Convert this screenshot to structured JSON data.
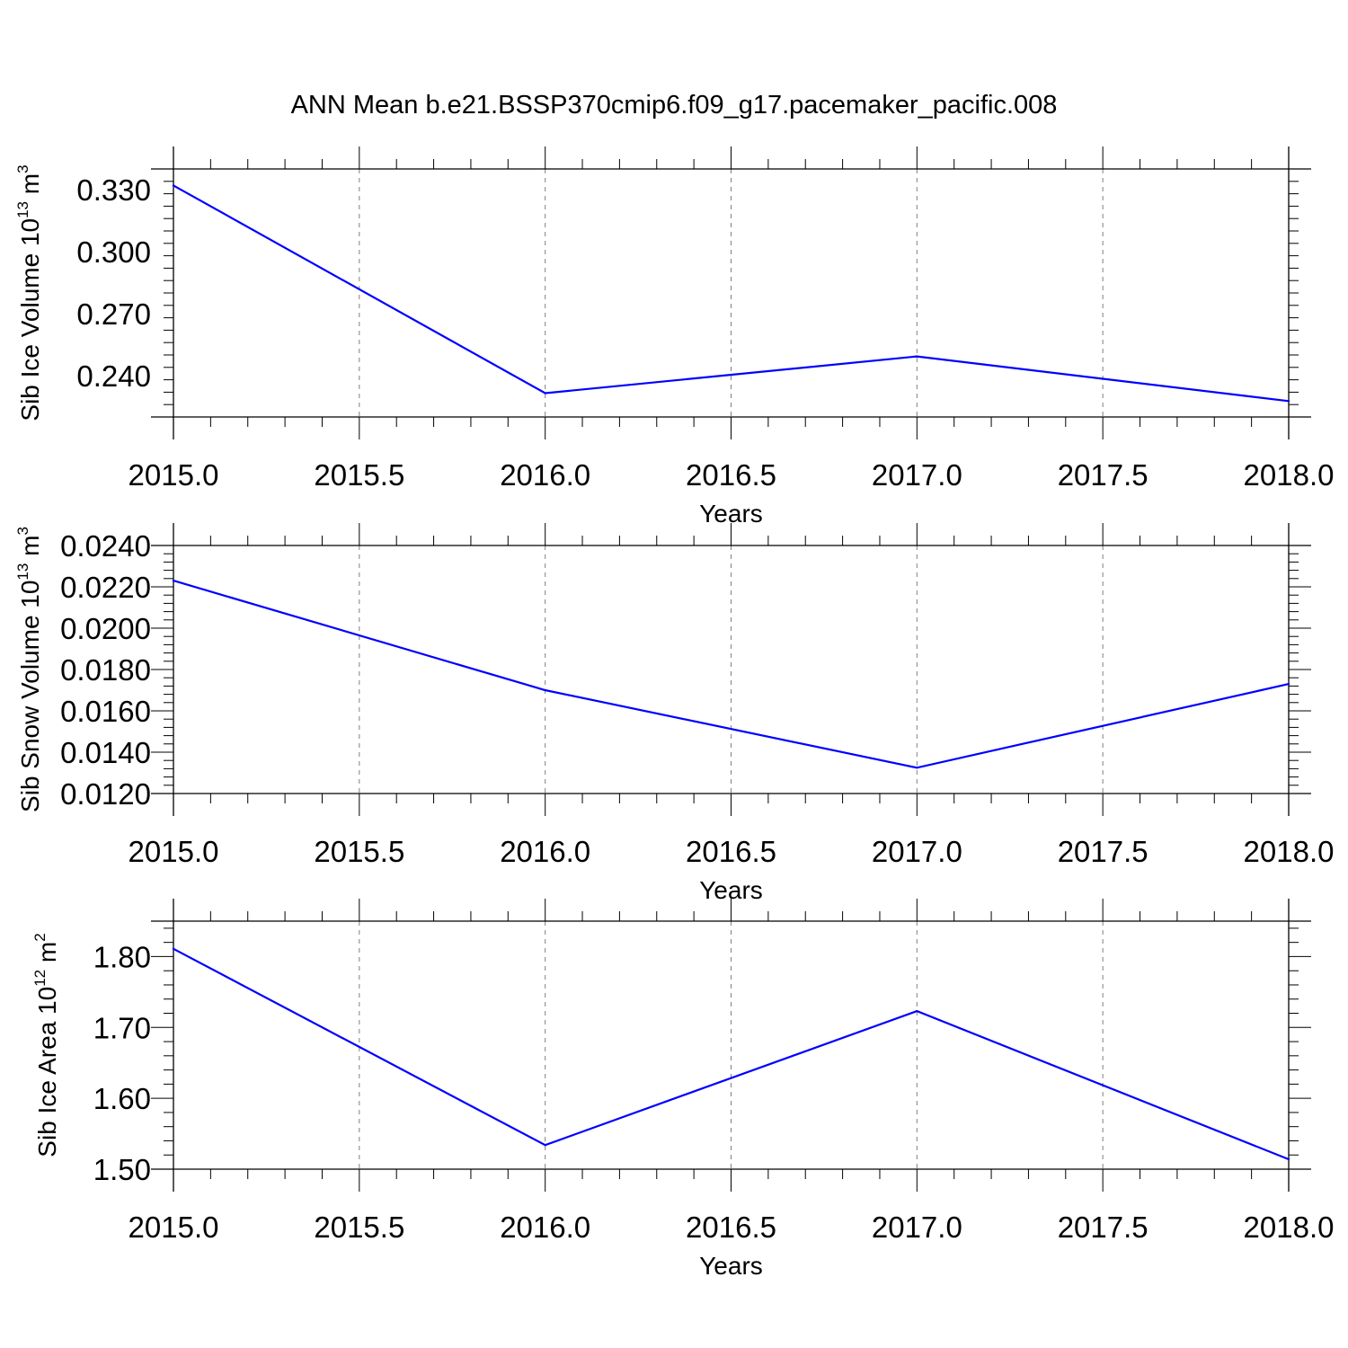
{
  "title": "ANN Mean b.e21.BSSP370cmip6.f09_g17.pacemaker_pacific.008",
  "colors": {
    "line": "#0000ff",
    "axis": "#000000",
    "grid": "#808080"
  },
  "chart_data": [
    {
      "type": "line",
      "ylabel": {
        "text": "Sib Ice Volume 10",
        "sup1": "13",
        "mid": " m",
        "sup2": "3"
      },
      "xlabel": "Years",
      "xlim": [
        2015.0,
        2018.0
      ],
      "ylim": [
        0.22,
        0.34
      ],
      "yticks": [
        0.24,
        0.27,
        0.3,
        0.33
      ],
      "ytick_labels": [
        "0.240",
        "0.270",
        "0.300",
        "0.330"
      ],
      "xticks": [
        2015.0,
        2015.5,
        2016.0,
        2016.5,
        2017.0,
        2017.5,
        2018.0
      ],
      "xtick_labels": [
        "2015.0",
        "2015.5",
        "2016.0",
        "2016.5",
        "2017.0",
        "2017.5",
        "2018.0"
      ],
      "grid": "vertical dashed at major x ticks",
      "series": [
        {
          "x": [
            2015,
            2016,
            2017,
            2018
          ],
          "values": [
            0.332,
            0.2315,
            0.2493,
            0.2277
          ]
        }
      ]
    },
    {
      "type": "line",
      "ylabel": {
        "text": "Sib Snow Volume 10",
        "sup1": "13",
        "mid": " m",
        "sup2": "3"
      },
      "xlabel": "Years",
      "xlim": [
        2015.0,
        2018.0
      ],
      "ylim": [
        0.012,
        0.024
      ],
      "yticks": [
        0.012,
        0.014,
        0.016,
        0.018,
        0.02,
        0.022,
        0.024
      ],
      "ytick_labels": [
        "0.0120",
        "0.0140",
        "0.0160",
        "0.0180",
        "0.0200",
        "0.0220",
        "0.0240"
      ],
      "xticks": [
        2015.0,
        2015.5,
        2016.0,
        2016.5,
        2017.0,
        2017.5,
        2018.0
      ],
      "xtick_labels": [
        "2015.0",
        "2015.5",
        "2016.0",
        "2016.5",
        "2017.0",
        "2017.5",
        "2018.0"
      ],
      "grid": "vertical dashed at major x ticks",
      "series": [
        {
          "x": [
            2015,
            2016,
            2017,
            2018
          ],
          "values": [
            0.0223,
            0.017,
            0.01325,
            0.0173
          ]
        }
      ]
    },
    {
      "type": "line",
      "ylabel": {
        "text": "Sib Ice Area 10",
        "sup1": "12",
        "mid": " m",
        "sup2": "2"
      },
      "xlabel": "Years",
      "xlim": [
        2015.0,
        2018.0
      ],
      "ylim": [
        1.5,
        1.85
      ],
      "yticks": [
        1.5,
        1.6,
        1.7,
        1.8
      ],
      "ytick_labels": [
        "1.50",
        "1.60",
        "1.70",
        "1.80"
      ],
      "xticks": [
        2015.0,
        2015.5,
        2016.0,
        2016.5,
        2017.0,
        2017.5,
        2018.0
      ],
      "xtick_labels": [
        "2015.0",
        "2015.5",
        "2016.0",
        "2016.5",
        "2017.0",
        "2017.5",
        "2018.0"
      ],
      "grid": "vertical dashed at major x ticks",
      "series": [
        {
          "x": [
            2015,
            2016,
            2017,
            2018
          ],
          "values": [
            1.811,
            1.534,
            1.723,
            1.514
          ]
        }
      ]
    }
  ]
}
